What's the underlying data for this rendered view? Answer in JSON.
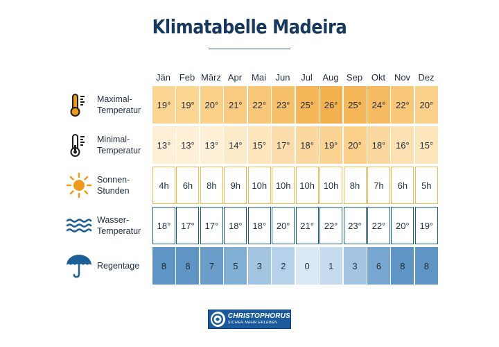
{
  "title": "Klimatabelle Madeira",
  "months": [
    "Jän",
    "Feb",
    "März",
    "Apr",
    "Mai",
    "Jun",
    "Jul",
    "Aug",
    "Sep",
    "Okt",
    "Nov",
    "Dez"
  ],
  "rows": [
    {
      "key": "max",
      "label_lines": [
        "Maximal-",
        "Temperatur"
      ],
      "icon": "thermometer-hot-icon",
      "values": [
        "19°",
        "19°",
        "20°",
        "21°",
        "22°",
        "23°",
        "25°",
        "26°",
        "25°",
        "24°",
        "22°",
        "20°"
      ],
      "colors": [
        "#fbd592",
        "#fbd592",
        "#fad08a",
        "#f9cb80",
        "#f8c777",
        "#f7c16c",
        "#f5b658",
        "#f4b14f",
        "#f5b658",
        "#f6bb61",
        "#f8c777",
        "#fad08a"
      ]
    },
    {
      "key": "min",
      "label_lines": [
        "Minimal-",
        "Temperatur"
      ],
      "icon": "thermometer-cold-icon",
      "values": [
        "13°",
        "13°",
        "13°",
        "14°",
        "15°",
        "17°",
        "18°",
        "19°",
        "20°",
        "18°",
        "16°",
        "15°"
      ],
      "colors": [
        "#fdf0d7",
        "#fdf0d7",
        "#fdf0d7",
        "#fdecc9",
        "#fde6bb",
        "#fbdcaa",
        "#fbd8a0",
        "#fbd493",
        "#fad08a",
        "#fbd8a0",
        "#fce1b2",
        "#fde6bb"
      ]
    },
    {
      "key": "sun",
      "label_lines": [
        "Sonnen-",
        "Stunden"
      ],
      "icon": "sun-icon",
      "values": [
        "4h",
        "6h",
        "8h",
        "9h",
        "10h",
        "10h",
        "10h",
        "10h",
        "8h",
        "7h",
        "6h",
        "5h"
      ],
      "outline_color": "#f3ba4a"
    },
    {
      "key": "water",
      "label_lines": [
        "Wasser-",
        "Temperatur"
      ],
      "icon": "waves-icon",
      "values": [
        "18°",
        "17°",
        "17°",
        "18°",
        "18°",
        "20°",
        "21°",
        "22°",
        "23°",
        "22°",
        "20°",
        "19°"
      ],
      "outline_color": "#1c5e8f"
    },
    {
      "key": "rain",
      "label_lines": [
        "Regentage"
      ],
      "icon": "umbrella-icon",
      "values": [
        "8",
        "8",
        "7",
        "5",
        "3",
        "2",
        "0",
        "1",
        "3",
        "6",
        "8",
        "8"
      ],
      "colors": [
        "#5e95c4",
        "#5e95c4",
        "#6a9dc9",
        "#82afd4",
        "#a4c5e2",
        "#b6d1e9",
        "#d9e8f4",
        "#c6dbee",
        "#a4c5e2",
        "#77a7d0",
        "#5e95c4",
        "#5e95c4"
      ]
    }
  ],
  "logo": {
    "brand": "CHRISTOPHORUS",
    "slogan": "SICHER MEHR ERLEBEN"
  },
  "palette": {
    "title": "#16395f",
    "icon_orange": "#f09a1a",
    "icon_dark": "#1b1b1b",
    "icon_blue": "#1a5f96"
  }
}
